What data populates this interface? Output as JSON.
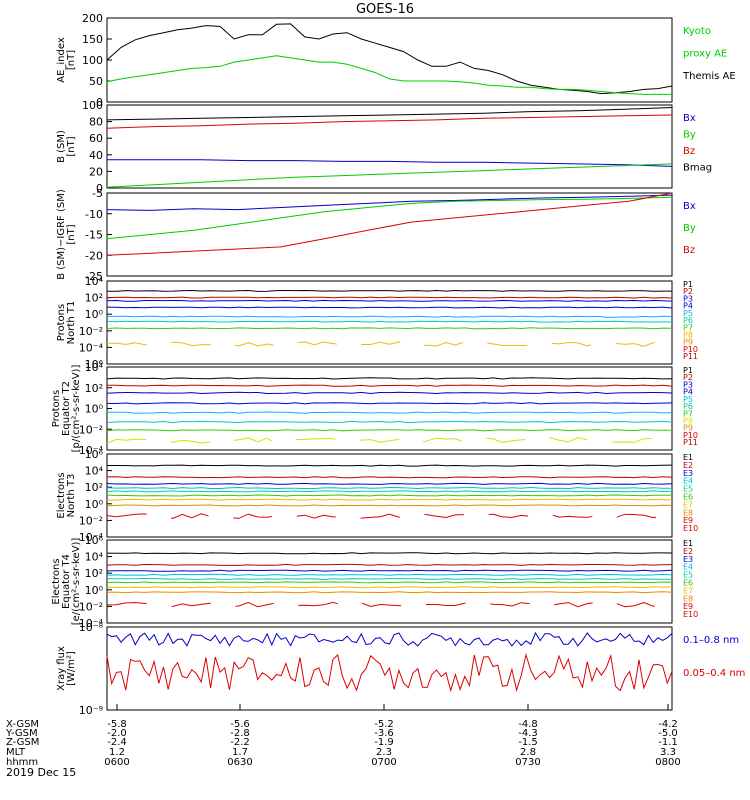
{
  "title": "GOES-16",
  "date": "2019 Dec 15",
  "colors": {
    "black": "#000000",
    "red": "#dd0000",
    "green": "#00cc00",
    "blue": "#0000cc",
    "cyan": "#00bbdd",
    "teal": "#00ccaa",
    "lime": "#33cc00",
    "yellow": "#dddd00",
    "gold": "#eebb00",
    "orange": "#ee8800",
    "darkred": "#bb0000"
  },
  "chart_data": [
    {
      "type": "line",
      "ylabel": [
        "AE_index",
        "[nT]"
      ],
      "ylim": [
        0,
        200
      ],
      "yticks": [
        "0",
        "50",
        "100",
        "150",
        "200"
      ],
      "legend": [
        "Kyoto",
        "proxy AE",
        "Themis AE"
      ],
      "series": [
        {
          "name": "Themis AE",
          "color": "black",
          "values": [
            100,
            130,
            148,
            158,
            165,
            172,
            176,
            182,
            180,
            150,
            160,
            160,
            185,
            186,
            155,
            150,
            162,
            165,
            150,
            140,
            130,
            120,
            100,
            85,
            85,
            95,
            80,
            75,
            65,
            50,
            40,
            35,
            30,
            28,
            25,
            20,
            22,
            25,
            30,
            32,
            38
          ]
        },
        {
          "name": "Kyoto proxy AE",
          "color": "green",
          "values": [
            48,
            55,
            60,
            65,
            70,
            75,
            80,
            82,
            85,
            95,
            100,
            105,
            110,
            105,
            100,
            95,
            95,
            90,
            80,
            70,
            55,
            50,
            50,
            50,
            50,
            48,
            45,
            40,
            38,
            35,
            35,
            32,
            30,
            30,
            28,
            25,
            22,
            20,
            18,
            18,
            18
          ]
        }
      ]
    },
    {
      "type": "line",
      "ylabel": [
        "B (SM)",
        "[nT]"
      ],
      "ylim": [
        0,
        100
      ],
      "yticks": [
        "0",
        "20",
        "40",
        "60",
        "80",
        "100"
      ],
      "legend": [
        "Bx",
        "By",
        "Bz",
        "Bmag"
      ],
      "series": [
        {
          "name": "Bmag",
          "color": "black",
          "values": [
            82,
            83,
            84,
            85,
            86,
            87,
            88,
            89,
            90,
            92,
            93,
            95,
            97
          ]
        },
        {
          "name": "Bz",
          "color": "red",
          "values": [
            72,
            74,
            75,
            77,
            78,
            80,
            81,
            82,
            84,
            85,
            86,
            87,
            88
          ]
        },
        {
          "name": "Bx",
          "color": "blue",
          "values": [
            34,
            34,
            34,
            33,
            33,
            32,
            32,
            31,
            31,
            30,
            29,
            28,
            26
          ]
        },
        {
          "name": "By",
          "color": "green",
          "values": [
            1,
            4,
            7,
            10,
            13,
            15,
            17,
            19,
            21,
            23,
            25,
            27,
            29
          ]
        }
      ]
    },
    {
      "type": "line",
      "ylabel": [
        "B (SM)−IGRF (SM)",
        "[nT]"
      ],
      "ylim": [
        -25,
        -5
      ],
      "yticks": [
        "-25",
        "-20",
        "-15",
        "-10",
        "-5"
      ],
      "legend": [
        "Bx",
        "By",
        "Bz"
      ],
      "series": [
        {
          "name": "Bx",
          "color": "blue",
          "values": [
            -9,
            -9.2,
            -8.8,
            -9,
            -8.5,
            -8,
            -7.5,
            -7,
            -6.8,
            -6.5,
            -6.2,
            -6,
            -5.8,
            -5.5
          ]
        },
        {
          "name": "By",
          "color": "green",
          "values": [
            -16,
            -15,
            -14,
            -12.5,
            -11,
            -9.5,
            -8.5,
            -7.5,
            -7,
            -6.8,
            -6.6,
            -6.5,
            -6.3,
            -6
          ]
        },
        {
          "name": "Bz",
          "color": "red",
          "values": [
            -20,
            -19.5,
            -19,
            -18.5,
            -18,
            -16,
            -14,
            -12,
            -11,
            -10,
            -9,
            -8,
            -7,
            -5
          ]
        }
      ]
    },
    {
      "type": "line",
      "yscale": "log",
      "ylabel": [
        "Protons",
        "North T1"
      ],
      "ylim": [
        1e-06,
        10000.0
      ],
      "yticks": [
        "10⁶",
        "10⁻⁴",
        "10⁻²",
        "10⁰",
        "10²",
        "10⁴"
      ],
      "legend": [
        "P1",
        "P2",
        "P3",
        "P4",
        "P5",
        "P6",
        "P7",
        "P8",
        "P9",
        "P10",
        "P11"
      ],
      "series": [
        {
          "name": "P1",
          "color": "black",
          "exp": 2.8
        },
        {
          "name": "P2",
          "color": "darkred",
          "exp": 2.0
        },
        {
          "name": "P3",
          "color": "blue",
          "exp": 1.6
        },
        {
          "name": "P4",
          "color": "blue",
          "exp": 0.8
        },
        {
          "name": "P5",
          "color": "cyan",
          "exp": -0.3
        },
        {
          "name": "P6",
          "color": "teal",
          "exp": -0.9
        },
        {
          "name": "P7",
          "color": "lime",
          "exp": -1.7
        },
        {
          "name": "P8",
          "color": "gold",
          "exp": -3.6,
          "dashed": true
        }
      ]
    },
    {
      "type": "line",
      "yscale": "log",
      "ylabel": [
        "Protons",
        "Equator T2",
        "[p/(cm²-s-sr-keV)]"
      ],
      "ylim": [
        0.0001,
        10000.0
      ],
      "yticks": [
        "10⁻⁴",
        "10⁻²",
        "10⁰",
        "10²",
        "10⁴"
      ],
      "legend": [
        "P1",
        "P2",
        "P3",
        "P4",
        "P5",
        "P6",
        "P7",
        "P8",
        "P9",
        "P10",
        "P11"
      ],
      "series": [
        {
          "name": "P1",
          "color": "black",
          "exp": 2.9
        },
        {
          "name": "P2",
          "color": "darkred",
          "exp": 2.2
        },
        {
          "name": "P3",
          "color": "blue",
          "exp": 1.5
        },
        {
          "name": "P4",
          "color": "blue",
          "exp": 0.5
        },
        {
          "name": "P5",
          "color": "cyan",
          "exp": -0.4
        },
        {
          "name": "P6",
          "color": "teal",
          "exp": -1.3
        },
        {
          "name": "P7",
          "color": "lime",
          "exp": -2.1
        },
        {
          "name": "P8",
          "color": "yellow",
          "exp": -3.1,
          "dashed": true
        }
      ]
    },
    {
      "type": "line",
      "yscale": "log",
      "ylabel": [
        "Electrons",
        "North T3"
      ],
      "ylim": [
        0.0001,
        1000000.0
      ],
      "yticks": [
        "10⁻⁴",
        "10⁻²",
        "10⁰",
        "10²",
        "10⁴",
        "10⁶"
      ],
      "legend": [
        "E1",
        "E2",
        "E3",
        "E4",
        "E5",
        "E6",
        "E7",
        "E8",
        "E9",
        "E10"
      ],
      "series": [
        {
          "name": "E1",
          "color": "black",
          "exp": 4.6
        },
        {
          "name": "E2",
          "color": "darkred",
          "exp": 3.2
        },
        {
          "name": "E3",
          "color": "blue",
          "exp": 2.4
        },
        {
          "name": "E4",
          "color": "cyan",
          "exp": 1.9
        },
        {
          "name": "E5",
          "color": "teal",
          "exp": 1.5
        },
        {
          "name": "E6",
          "color": "lime",
          "exp": 1.0
        },
        {
          "name": "E7",
          "color": "gold",
          "exp": 0.5
        },
        {
          "name": "E8",
          "color": "orange",
          "exp": -0.2
        },
        {
          "name": "E9",
          "color": "red",
          "exp": -1.5,
          "dashed": true
        }
      ]
    },
    {
      "type": "line",
      "yscale": "log",
      "ylabel": [
        "Electrons",
        "Equator T4",
        "[e/(cm²-s-sr-keV)]"
      ],
      "ylim": [
        0.0001,
        1000000.0
      ],
      "yticks": [
        "10⁻⁴",
        "10⁻²",
        "10⁰",
        "10²",
        "10⁴",
        "10⁶"
      ],
      "legend": [
        "E1",
        "E2",
        "E3",
        "E4",
        "E5",
        "E6",
        "E7",
        "E8",
        "E9",
        "E10"
      ],
      "series": [
        {
          "name": "E1",
          "color": "black",
          "exp": 4.4
        },
        {
          "name": "E2",
          "color": "darkred",
          "exp": 3.0
        },
        {
          "name": "E3",
          "color": "blue",
          "exp": 2.3
        },
        {
          "name": "E4",
          "color": "cyan",
          "exp": 1.8
        },
        {
          "name": "E5",
          "color": "teal",
          "exp": 1.3
        },
        {
          "name": "E6",
          "color": "lime",
          "exp": 0.9
        },
        {
          "name": "E7",
          "color": "gold",
          "exp": 0.3
        },
        {
          "name": "E8",
          "color": "orange",
          "exp": -0.3
        },
        {
          "name": "E9",
          "color": "red",
          "exp": -1.8,
          "dashed": true
        }
      ]
    },
    {
      "type": "line",
      "yscale": "log",
      "ylabel": [
        "Xray flux",
        "[W/m²]"
      ],
      "ylim": [
        1e-09,
        1e-08
      ],
      "yticks": [
        "10⁻⁹",
        "10⁻⁸"
      ],
      "legend": [
        "0.1–0.8 nm",
        "0.05–0.4 nm"
      ],
      "series": [
        {
          "name": "0.1–0.8 nm",
          "color": "blue",
          "base": -8.15,
          "amp": 0.08
        },
        {
          "name": "0.05–0.4 nm",
          "color": "red",
          "base": -8.55,
          "amp": 0.22
        }
      ]
    }
  ],
  "x_axis": {
    "row_labels": [
      "X-GSM",
      "Y-GSM",
      "Z-GSM",
      "MLT",
      "hhmm"
    ],
    "ticks": [
      {
        "x_gsm": "-5.8",
        "y_gsm": "-2.0",
        "z_gsm": "-2.4",
        "mlt": "1.2",
        "hhmm": "0600"
      },
      {
        "x_gsm": "-5.6",
        "y_gsm": "-2.8",
        "z_gsm": "-2.2",
        "mlt": "1.7",
        "hhmm": "0630"
      },
      {
        "x_gsm": "-5.2",
        "y_gsm": "-3.6",
        "z_gsm": "-1.9",
        "mlt": "2.3",
        "hhmm": "0700"
      },
      {
        "x_gsm": "-4.8",
        "y_gsm": "-4.3",
        "z_gsm": "-1.5",
        "mlt": "2.8",
        "hhmm": "0730"
      },
      {
        "x_gsm": "-4.2",
        "y_gsm": "-5.0",
        "z_gsm": "-1.1",
        "mlt": "3.3",
        "hhmm": "0800"
      }
    ]
  }
}
